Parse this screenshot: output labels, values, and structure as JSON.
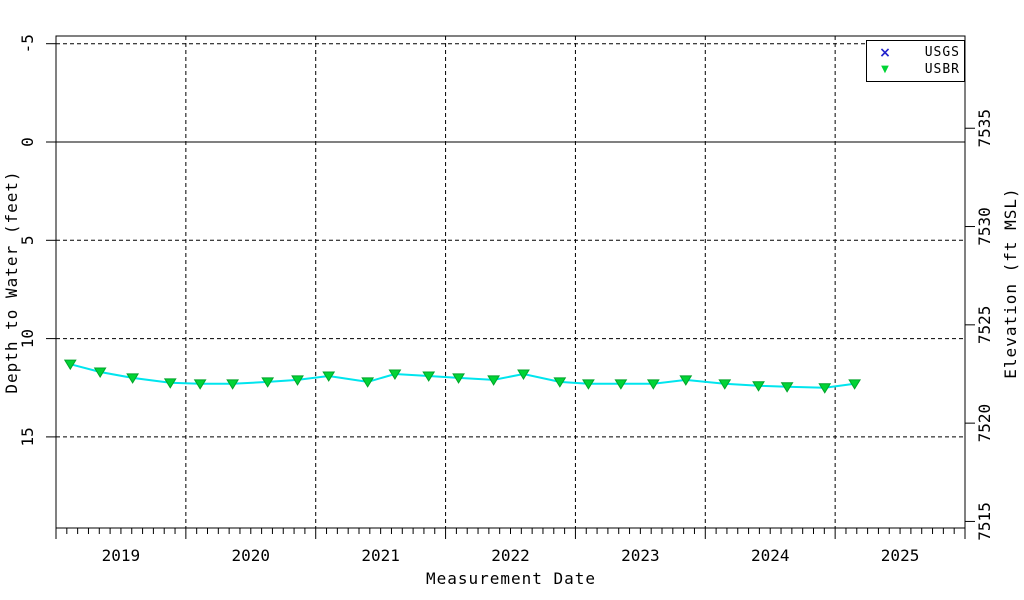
{
  "chart_data": {
    "type": "line",
    "title": "",
    "xlabel": "Measurement Date",
    "ylabel_left": "Depth to Water (feet)",
    "ylabel_right": "Elevation (ft MSL)",
    "x_range": [
      2019,
      2026
    ],
    "x_year_labels": [
      "2019",
      "2020",
      "2021",
      "2022",
      "2023",
      "2024",
      "2025"
    ],
    "x_minor_tick_interval_months": 1,
    "y_left_ticks": [
      "-5",
      "0",
      "5",
      "10",
      "15"
    ],
    "y_left_tick_values": [
      -5,
      0,
      5,
      10,
      15
    ],
    "y_left_range_depth_ft": [
      -5.4,
      19.6
    ],
    "y_left_inverted": true,
    "y_right_ticks": [
      "7515",
      "7520",
      "7525",
      "7530",
      "7535"
    ],
    "y_right_tick_values": [
      7515,
      7520,
      7525,
      7530,
      7535
    ],
    "surface_elevation_ft_msl": 7534.3,
    "gridlines": {
      "horizontal_dashed_depths": [
        -5,
        5,
        10,
        15
      ],
      "horizontal_solid_depths": [
        0
      ],
      "vertical_dashed_years": [
        2020,
        2021,
        2022,
        2023,
        2024,
        2025
      ]
    },
    "legend": {
      "position": "top-right",
      "entries": [
        {
          "label": "USGS",
          "marker": "x-cross",
          "marker_glyph": "×",
          "color": "#2222cc"
        },
        {
          "label": "USBR",
          "marker": "triangle-down",
          "marker_glyph": "▼",
          "color": "#00d435"
        }
      ]
    },
    "series": [
      {
        "name": "USBR",
        "marker": "triangle-down",
        "marker_fill": "#00d435",
        "marker_stroke": "#00a32a",
        "line_color": "#00e5ee",
        "points": [
          {
            "date": "2019-02",
            "year": 2019.11,
            "depth_ft": 11.3,
            "elevation_ft": 7523.0
          },
          {
            "date": "2019-05",
            "year": 2019.34,
            "depth_ft": 11.7,
            "elevation_ft": 7522.6
          },
          {
            "date": "2019-08",
            "year": 2019.59,
            "depth_ft": 12.0,
            "elevation_ft": 7522.3
          },
          {
            "date": "2019-11",
            "year": 2019.88,
            "depth_ft": 12.25,
            "elevation_ft": 7522.05
          },
          {
            "date": "2020-02",
            "year": 2020.11,
            "depth_ft": 12.3,
            "elevation_ft": 7522.0
          },
          {
            "date": "2020-05",
            "year": 2020.36,
            "depth_ft": 12.3,
            "elevation_ft": 7522.0
          },
          {
            "date": "2020-08",
            "year": 2020.63,
            "depth_ft": 12.2,
            "elevation_ft": 7522.1
          },
          {
            "date": "2020-11",
            "year": 2020.86,
            "depth_ft": 12.1,
            "elevation_ft": 7522.2
          },
          {
            "date": "2021-02",
            "year": 2021.1,
            "depth_ft": 11.9,
            "elevation_ft": 7522.4
          },
          {
            "date": "2021-05",
            "year": 2021.4,
            "depth_ft": 12.2,
            "elevation_ft": 7522.1
          },
          {
            "date": "2021-08",
            "year": 2021.61,
            "depth_ft": 11.8,
            "elevation_ft": 7522.5
          },
          {
            "date": "2021-11",
            "year": 2021.87,
            "depth_ft": 11.9,
            "elevation_ft": 7522.4
          },
          {
            "date": "2022-02",
            "year": 2022.1,
            "depth_ft": 12.0,
            "elevation_ft": 7522.3
          },
          {
            "date": "2022-05",
            "year": 2022.37,
            "depth_ft": 12.1,
            "elevation_ft": 7522.2
          },
          {
            "date": "2022-08",
            "year": 2022.6,
            "depth_ft": 11.8,
            "elevation_ft": 7522.5
          },
          {
            "date": "2022-11",
            "year": 2022.88,
            "depth_ft": 12.2,
            "elevation_ft": 7522.1
          },
          {
            "date": "2023-02",
            "year": 2023.1,
            "depth_ft": 12.3,
            "elevation_ft": 7522.0
          },
          {
            "date": "2023-05",
            "year": 2023.35,
            "depth_ft": 12.3,
            "elevation_ft": 7522.0
          },
          {
            "date": "2023-08",
            "year": 2023.6,
            "depth_ft": 12.3,
            "elevation_ft": 7522.0
          },
          {
            "date": "2023-11",
            "year": 2023.85,
            "depth_ft": 12.1,
            "elevation_ft": 7522.2
          },
          {
            "date": "2024-02",
            "year": 2024.15,
            "depth_ft": 12.3,
            "elevation_ft": 7522.0
          },
          {
            "date": "2024-05",
            "year": 2024.41,
            "depth_ft": 12.4,
            "elevation_ft": 7521.9
          },
          {
            "date": "2024-08",
            "year": 2024.63,
            "depth_ft": 12.45,
            "elevation_ft": 7521.85
          },
          {
            "date": "2024-12",
            "year": 2024.92,
            "depth_ft": 12.5,
            "elevation_ft": 7521.8
          },
          {
            "date": "2025-02",
            "year": 2025.15,
            "depth_ft": 12.3,
            "elevation_ft": 7522.0
          }
        ]
      }
    ]
  }
}
